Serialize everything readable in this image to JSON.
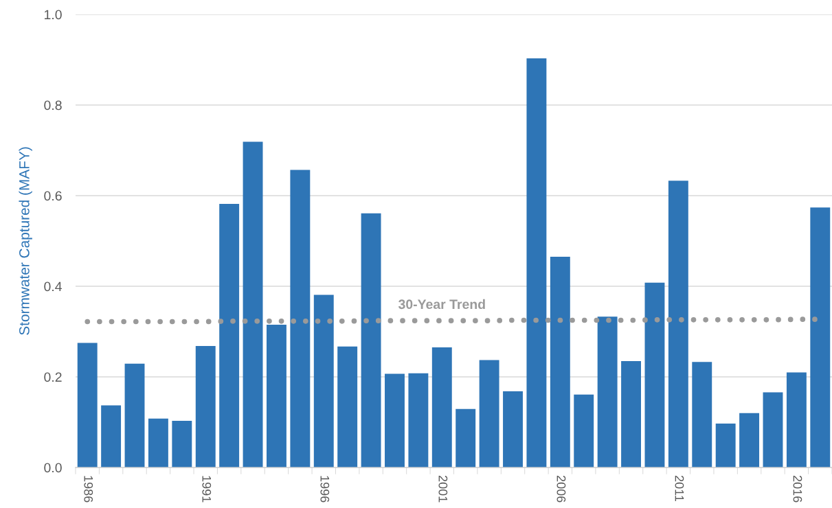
{
  "chart_data": {
    "type": "bar",
    "ylabel": "Stormwater Captured (MAFY)",
    "categories": [
      "1986",
      null,
      null,
      null,
      null,
      "1991",
      null,
      null,
      null,
      null,
      "1996",
      null,
      null,
      null,
      null,
      "2001",
      null,
      null,
      null,
      null,
      "2006",
      null,
      null,
      null,
      null,
      "2011",
      null,
      null,
      null,
      null,
      "2016",
      null
    ],
    "series": [
      {
        "color": "#2e75b6",
        "values": [
          0.275,
          0.137,
          0.229,
          0.108,
          0.103,
          0.268,
          0.582,
          0.719,
          0.315,
          0.657,
          0.381,
          0.267,
          0.561,
          0.207,
          0.208,
          0.265,
          0.129,
          0.237,
          0.168,
          0.903,
          0.465,
          0.161,
          0.333,
          0.235,
          0.408,
          0.633,
          0.233,
          0.097,
          0.12,
          0.166,
          0.21,
          0.574
        ]
      },
      {
        "type": "line",
        "name": "30-Year Trend",
        "color": "#9a9a9a",
        "line_style": "dotted",
        "values": [
          0.322,
          0.322,
          0.322,
          0.322,
          0.322,
          0.322,
          0.323,
          0.323,
          0.323,
          0.323,
          0.323,
          0.323,
          0.324,
          0.324,
          0.324,
          0.324,
          0.324,
          0.324,
          0.325,
          0.325,
          0.325,
          0.325,
          0.325,
          0.325,
          0.326,
          0.326,
          0.326,
          0.326,
          0.326,
          0.326,
          0.327,
          0.327
        ]
      }
    ],
    "ylim": [
      0,
      1
    ],
    "yticks": [
      {
        "value": 0,
        "label": "0.0"
      },
      {
        "value": 0.2,
        "label": "0.2"
      },
      {
        "value": 0.4,
        "label": "0.4"
      },
      {
        "value": 0.6,
        "label": "0.6"
      },
      {
        "value": 0.8,
        "label": "0.8"
      },
      {
        "value": 1,
        "label": "1.0"
      }
    ],
    "grid": "y",
    "legend": false
  }
}
